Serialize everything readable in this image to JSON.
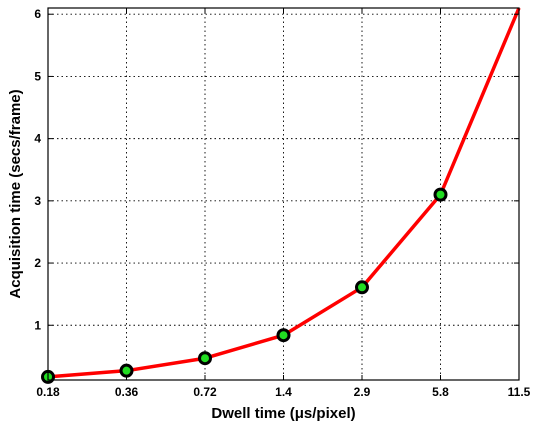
{
  "chart_data": {
    "type": "line",
    "xlabel": "Dwell time (μs/pixel)",
    "ylabel": "Acquisition time (secs/frame)",
    "x_tick_labels": [
      "0.18",
      "0.36",
      "0.72",
      "1.4",
      "2.9",
      "5.8",
      "11.5"
    ],
    "y_ticks": [
      0,
      1,
      2,
      3,
      4,
      5,
      6
    ],
    "y_tick_labels": [
      "",
      "1",
      "2",
      "3",
      "4",
      "5",
      "6"
    ],
    "ylim": [
      0.12,
      6.1
    ],
    "x_scale": "categorical (evenly spaced, doubling)",
    "grid": true,
    "series": [
      {
        "values": [
          0.17,
          0.27,
          0.47,
          0.84,
          1.61,
          3.1,
          6.1
        ],
        "line_color": "#ff0000",
        "marker_fill": "#22dd22",
        "marker_edge": "#000000",
        "markers_on": [
          0,
          1,
          2,
          3,
          4,
          5
        ]
      }
    ]
  }
}
